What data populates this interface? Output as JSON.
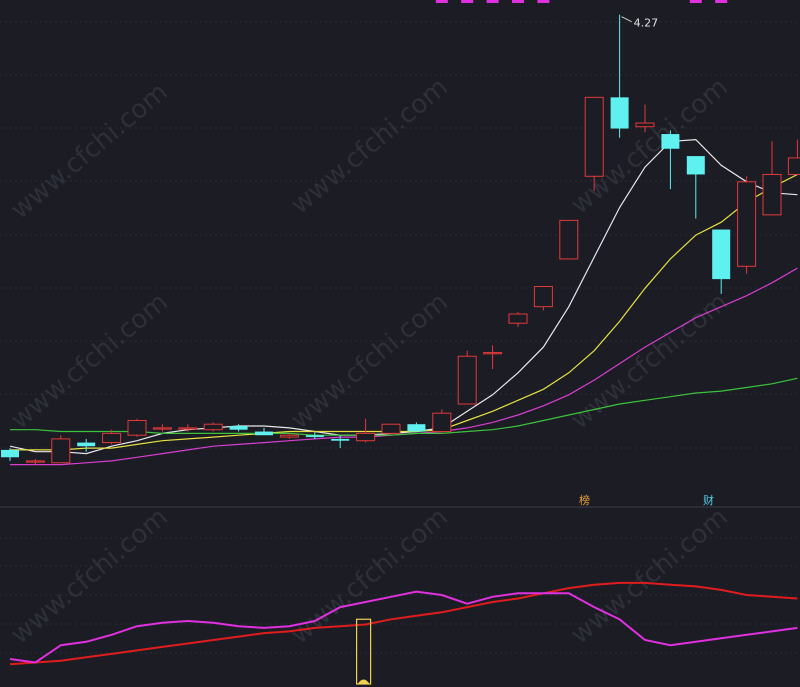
{
  "watermark": "www.cfchi.com",
  "chart_data": [
    {
      "type": "candlestick",
      "panel": "main",
      "grid": true,
      "ylim": [
        1.6,
        4.35
      ],
      "high_label": "4.27",
      "high_label_index": 24,
      "colors": {
        "up": "#e3393a",
        "down": "#5ff0f0",
        "ma1": "#e8e8e8",
        "ma2": "#e6e043",
        "ma3": "#d83fd0",
        "ma4": "#3cc33c"
      },
      "candles": [
        {
          "o": 1.9,
          "h": 1.91,
          "l": 1.84,
          "c": 1.86
        },
        {
          "o": 1.84,
          "h": 1.85,
          "l": 1.82,
          "c": 1.84
        },
        {
          "o": 1.83,
          "h": 1.98,
          "l": 1.83,
          "c": 1.96
        },
        {
          "o": 1.94,
          "h": 1.96,
          "l": 1.89,
          "c": 1.92
        },
        {
          "o": 1.94,
          "h": 2.01,
          "l": 1.93,
          "c": 1.99
        },
        {
          "o": 1.98,
          "h": 2.07,
          "l": 1.97,
          "c": 2.06
        },
        {
          "o": 2.02,
          "h": 2.04,
          "l": 2.0,
          "c": 2.02
        },
        {
          "o": 2.02,
          "h": 2.04,
          "l": 2.0,
          "c": 2.02
        },
        {
          "o": 2.01,
          "h": 2.05,
          "l": 2.0,
          "c": 2.04
        },
        {
          "o": 2.03,
          "h": 2.04,
          "l": 2.0,
          "c": 2.01
        },
        {
          "o": 2.0,
          "h": 2.02,
          "l": 1.98,
          "c": 1.98
        },
        {
          "o": 1.97,
          "h": 1.99,
          "l": 1.96,
          "c": 1.98
        },
        {
          "o": 1.98,
          "h": 2.0,
          "l": 1.96,
          "c": 1.97
        },
        {
          "o": 1.96,
          "h": 1.98,
          "l": 1.91,
          "c": 1.95
        },
        {
          "o": 1.95,
          "h": 2.07,
          "l": 1.94,
          "c": 1.99
        },
        {
          "o": 1.99,
          "h": 2.04,
          "l": 1.98,
          "c": 2.04
        },
        {
          "o": 2.04,
          "h": 2.05,
          "l": 2.0,
          "c": 2.0
        },
        {
          "o": 2.0,
          "h": 2.12,
          "l": 1.99,
          "c": 2.1
        },
        {
          "o": 2.15,
          "h": 2.44,
          "l": 2.15,
          "c": 2.41
        },
        {
          "o": 2.43,
          "h": 2.47,
          "l": 2.34,
          "c": 2.43
        },
        {
          "o": 2.59,
          "h": 2.65,
          "l": 2.57,
          "c": 2.64
        },
        {
          "o": 2.68,
          "h": 2.79,
          "l": 2.66,
          "c": 2.79
        },
        {
          "o": 2.94,
          "h": 3.15,
          "l": 2.94,
          "c": 3.15
        },
        {
          "o": 3.39,
          "h": 3.82,
          "l": 3.31,
          "c": 3.82
        },
        {
          "o": 3.82,
          "h": 4.27,
          "l": 3.6,
          "c": 3.65
        },
        {
          "o": 3.66,
          "h": 3.78,
          "l": 3.63,
          "c": 3.68
        },
        {
          "o": 3.62,
          "h": 3.64,
          "l": 3.32,
          "c": 3.54
        },
        {
          "o": 3.5,
          "h": 3.5,
          "l": 3.16,
          "c": 3.4
        },
        {
          "o": 3.1,
          "h": 3.1,
          "l": 2.75,
          "c": 2.83
        },
        {
          "o": 2.9,
          "h": 3.39,
          "l": 2.86,
          "c": 3.36
        },
        {
          "o": 3.18,
          "h": 3.58,
          "l": 3.18,
          "c": 3.4
        },
        {
          "o": 3.4,
          "h": 3.59,
          "l": 3.4,
          "c": 3.49
        }
      ],
      "ma_series": [
        {
          "key": "ma1",
          "values": [
            1.92,
            1.89,
            1.89,
            1.88,
            1.92,
            1.95,
            1.99,
            2.01,
            2.02,
            2.03,
            2.03,
            2.02,
            2.0,
            1.98,
            1.98,
            1.99,
            2.0,
            2.02,
            2.11,
            2.2,
            2.32,
            2.46,
            2.68,
            2.95,
            3.22,
            3.44,
            3.58,
            3.59,
            3.45,
            3.36,
            3.3,
            3.29
          ]
        },
        {
          "key": "ma2",
          "values": [
            1.9,
            1.9,
            1.9,
            1.91,
            1.91,
            1.93,
            1.95,
            1.96,
            1.97,
            1.98,
            1.99,
            2.0,
            2.0,
            2.0,
            2.0,
            2.0,
            2.0,
            2.01,
            2.06,
            2.11,
            2.17,
            2.23,
            2.32,
            2.44,
            2.6,
            2.78,
            2.94,
            3.07,
            3.14,
            3.25,
            3.33,
            3.4
          ]
        },
        {
          "key": "ma3",
          "values": [
            1.82,
            1.82,
            1.82,
            1.83,
            1.84,
            1.86,
            1.88,
            1.9,
            1.92,
            1.93,
            1.94,
            1.95,
            1.96,
            1.97,
            1.97,
            1.98,
            1.99,
            2.0,
            2.02,
            2.05,
            2.09,
            2.14,
            2.2,
            2.28,
            2.37,
            2.46,
            2.54,
            2.62,
            2.68,
            2.74,
            2.81,
            2.89
          ]
        },
        {
          "key": "ma4",
          "values": [
            2.01,
            2.01,
            2.0,
            2.0,
            2.0,
            2.0,
            1.99,
            1.99,
            1.99,
            1.99,
            1.99,
            1.99,
            1.98,
            1.98,
            1.98,
            1.98,
            1.99,
            1.99,
            2.0,
            2.01,
            2.03,
            2.06,
            2.09,
            2.12,
            2.15,
            2.17,
            2.19,
            2.21,
            2.22,
            2.24,
            2.26,
            2.29
          ]
        }
      ],
      "top_strip_color": "#e030e0",
      "top_strip_indices": [
        17,
        18,
        19,
        20,
        21,
        27,
        28
      ]
    },
    {
      "type": "line",
      "panel": "indicator",
      "grid": true,
      "ylim": [
        0,
        100
      ],
      "colors": {
        "red": "#e01c1c",
        "magenta": "#e030e0",
        "marker": "#f0d050"
      },
      "series": [
        {
          "key": "red",
          "values": [
            12,
            13,
            14,
            16,
            18,
            20,
            22,
            24,
            26,
            28,
            30,
            31,
            33,
            34,
            35,
            38,
            40,
            42,
            45,
            48,
            50,
            53,
            56,
            58,
            59,
            59,
            58,
            57,
            55,
            52,
            51,
            50
          ]
        },
        {
          "key": "magenta",
          "values": [
            15,
            13,
            23,
            25,
            29,
            34,
            36,
            37,
            36,
            34,
            33,
            34,
            37,
            45,
            48,
            51,
            54,
            52,
            47,
            51,
            53,
            53,
            53,
            45,
            38,
            26,
            23,
            25,
            27,
            29,
            31,
            33
          ]
        }
      ],
      "marker_index": 14,
      "marker_top_value": 38
    }
  ],
  "markers": {
    "bang": "榜",
    "cai": "财"
  }
}
